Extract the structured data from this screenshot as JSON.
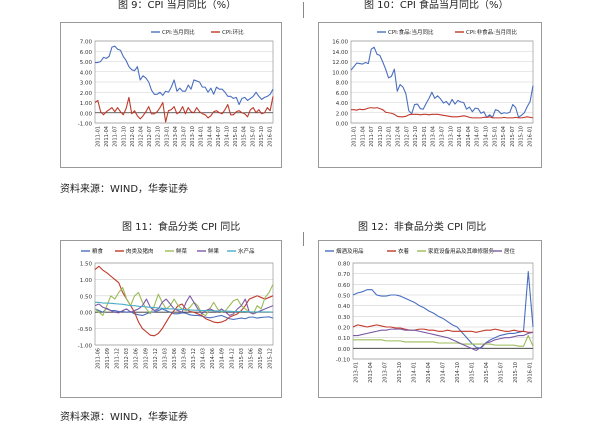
{
  "headings": {
    "fig9": "图 9：CPI 当月同比（%）",
    "fig10": "图 10：CPI 食品当月同比（%）",
    "fig11": "图 11：食品分类 CPI 同比",
    "fig12": "图 12：非食品分类 CPI 同比"
  },
  "sources": {
    "middle": "资料来源：WIND，华泰证券",
    "bottom": "资料来源：WIND，华泰证券"
  },
  "colors": {
    "blue": "#4a6fbf",
    "red": "#c0392b",
    "green": "#9bbb59",
    "purple": "#7b5aa6",
    "teal": "#4bacc6",
    "grid": "#d0d0d0",
    "axis": "#333333"
  },
  "chart_data": [
    {
      "id": "fig9",
      "type": "line",
      "x_labels": [
        "2011-01",
        "2011-04",
        "2011-07",
        "2011-10",
        "2012-01",
        "2012-04",
        "2012-07",
        "2012-10",
        "2013-01",
        "2013-04",
        "2013-07",
        "2013-10",
        "2014-01",
        "2014-04",
        "2014-07",
        "2014-10",
        "2015-01",
        "2015-04",
        "2015-07",
        "2015-10",
        "2016-01"
      ],
      "ylim": [
        -1.0,
        7.0
      ],
      "yticks": [
        "7.00",
        "6.00",
        "5.00",
        "4.00",
        "3.00",
        "2.00",
        "1.00",
        "0.00",
        "-1.00"
      ],
      "legend": [
        "CPI:当月同比",
        "CPI:环比"
      ],
      "series": [
        {
          "name": "CPI:当月同比",
          "color": "blue",
          "values": [
            4.9,
            4.9,
            5.0,
            5.4,
            5.3,
            5.5,
            6.4,
            6.5,
            6.2,
            6.1,
            5.5,
            5.1,
            4.5,
            4.2,
            4.1,
            4.5,
            3.2,
            3.6,
            3.4,
            3.0,
            2.2,
            1.8,
            1.8,
            2.0,
            1.7,
            2.1,
            2.0,
            2.5,
            3.2,
            2.1,
            2.4,
            2.1,
            2.1,
            2.7,
            2.3,
            3.2,
            3.1,
            3.0,
            2.5,
            2.5,
            2.0,
            2.4,
            1.8,
            2.5,
            2.3,
            2.3,
            2.0,
            1.6,
            1.6,
            1.4,
            1.5,
            0.8,
            1.4,
            1.5,
            1.2,
            1.4,
            1.6,
            2.0,
            1.6,
            1.3,
            1.5,
            1.6,
            1.8,
            2.3
          ]
        },
        {
          "name": "CPI:环比",
          "color": "red",
          "values": [
            1.0,
            1.2,
            0.1,
            -0.2,
            0.1,
            0.3,
            0.5,
            0.1,
            0.5,
            0.1,
            -0.2,
            0.4,
            1.5,
            -0.1,
            0.2,
            -0.3,
            -0.6,
            -0.3,
            0.1,
            0.6,
            -0.1,
            -0.1,
            0.1,
            0.5,
            1.0,
            -0.9,
            0.2,
            0.3,
            0.6,
            -0.1,
            0.1,
            0.6,
            -0.1,
            0.5,
            0.1,
            0.0,
            0.5,
            0.1,
            -0.1,
            -0.2,
            -0.5,
            -0.3,
            0.1,
            0.2,
            0.0,
            -0.1,
            0.3,
            0.8,
            -0.2,
            -0.2,
            0.1,
            0.2,
            0.0,
            -0.1,
            -0.4,
            0.3,
            0.5,
            0.0,
            0.3,
            -0.1,
            0.0,
            0.5,
            0.2,
            1.6
          ]
        }
      ]
    },
    {
      "id": "fig10",
      "type": "line",
      "x_labels": [
        "2011-01",
        "2011-04",
        "2011-07",
        "2011-10",
        "2012-01",
        "2012-04",
        "2012-07",
        "2012-10",
        "2013-01",
        "2013-04",
        "2013-07",
        "2013-10",
        "2014-01",
        "2014-04",
        "2014-07",
        "2014-10",
        "2015-01",
        "2015-04",
        "2015-07",
        "2015-10",
        "2016-01"
      ],
      "ylim": [
        0.0,
        16.0
      ],
      "yticks": [
        "16.00",
        "14.00",
        "12.00",
        "10.00",
        "8.00",
        "6.00",
        "4.00",
        "2.00",
        "0.00"
      ],
      "legend": [
        "CPI:食品:当月同比",
        "CPI:非食品:当月同比"
      ],
      "series": [
        {
          "name": "CPI:食品:当月同比",
          "color": "blue",
          "values": [
            10.3,
            11.0,
            11.7,
            11.6,
            11.5,
            11.8,
            11.6,
            14.4,
            14.8,
            13.4,
            13.2,
            11.9,
            10.5,
            8.8,
            9.1,
            10.5,
            6.2,
            7.5,
            7.0,
            5.7,
            2.4,
            1.8,
            3.6,
            3.7,
            2.8,
            2.7,
            3.8,
            4.8,
            6.0,
            4.8,
            5.3,
            4.7,
            3.9,
            4.2,
            3.5,
            4.6,
            3.7,
            4.4,
            4.1,
            4.0,
            2.7,
            3.1,
            2.2,
            2.9,
            2.8,
            1.9,
            2.2,
            1.1,
            1.6,
            1.1,
            2.6,
            2.4,
            1.8,
            2.0,
            1.9,
            2.1,
            3.6,
            3.0,
            1.1,
            1.5,
            2.0,
            3.2,
            4.2,
            7.3
          ]
        },
        {
          "name": "CPI:非食品:当月同比",
          "color": "red",
          "values": [
            2.6,
            2.6,
            2.5,
            2.7,
            2.6,
            2.7,
            2.9,
            3.0,
            2.9,
            3.0,
            2.8,
            2.6,
            2.1,
            2.0,
            1.9,
            1.7,
            1.3,
            1.2,
            1.2,
            1.3,
            1.6,
            1.7,
            1.7,
            1.7,
            1.6,
            1.7,
            1.7,
            1.6,
            1.7,
            1.7,
            1.7,
            1.6,
            1.5,
            1.4,
            1.3,
            1.2,
            1.2,
            1.2,
            1.3,
            1.4,
            1.3,
            1.1,
            1.0,
            1.0,
            1.0,
            1.0,
            1.1,
            1.1,
            1.2,
            1.0,
            1.0,
            1.0,
            1.0,
            1.1,
            1.0,
            1.0,
            1.0,
            1.1,
            1.0,
            1.0,
            1.1,
            1.2,
            1.1,
            1.0
          ]
        }
      ]
    },
    {
      "id": "fig11",
      "type": "line",
      "x_labels": [
        "2011-06",
        "2011-09",
        "2011-12",
        "2012-03",
        "2012-06",
        "2012-09",
        "2012-12",
        "2013-03",
        "2013-06",
        "2013-09",
        "2013-12",
        "2014-03",
        "2014-06",
        "2014-09",
        "2014-12",
        "2015-03",
        "2015-06",
        "2015-09",
        "2015-12"
      ],
      "ylim": [
        -1.0,
        1.5
      ],
      "yticks": [
        "1.50",
        "1.00",
        "0.50",
        "0.00",
        "-0.50",
        "-1.00"
      ],
      "legend": [
        "粮食",
        "肉类及猪肉",
        "鲜菜",
        "鲜果",
        "水产品"
      ],
      "series": [
        {
          "name": "粮食",
          "color": "blue",
          "values": [
            0.1,
            0.05,
            0.0,
            0.12,
            0.05,
            0.05,
            0.02,
            0.02,
            0.0,
            0.02,
            -0.05,
            -0.08,
            -0.1,
            -0.05,
            0.0,
            0.01,
            0.05,
            0.1,
            0.05,
            0.0,
            -0.05,
            -0.05,
            -0.02,
            -0.03,
            -0.08,
            -0.1,
            -0.1,
            -0.12,
            -0.15,
            -0.17,
            -0.15,
            -0.12,
            -0.1,
            -0.15,
            -0.2,
            -0.22,
            -0.2,
            -0.18,
            -0.2,
            -0.15,
            -0.15,
            -0.18,
            -0.16,
            -0.15,
            -0.14,
            -0.18
          ]
        },
        {
          "name": "肉类及猪肉",
          "color": "red",
          "values": [
            1.3,
            1.4,
            1.28,
            1.2,
            1.1,
            1.0,
            0.9,
            0.6,
            0.4,
            0.2,
            0.0,
            -0.3,
            -0.5,
            -0.6,
            -0.7,
            -0.72,
            -0.65,
            -0.5,
            -0.3,
            -0.1,
            0.05,
            0.2,
            0.25,
            0.1,
            0.02,
            0.0,
            -0.05,
            -0.1,
            -0.2,
            -0.25,
            -0.3,
            -0.32,
            -0.3,
            -0.25,
            -0.15,
            -0.1,
            -0.05,
            0.05,
            0.2,
            0.4,
            0.45,
            0.5,
            0.45,
            0.4,
            0.45,
            0.5
          ]
        },
        {
          "name": "鲜菜",
          "color": "green",
          "values": [
            0.1,
            0.0,
            -0.1,
            0.2,
            0.5,
            0.4,
            0.6,
            0.75,
            0.4,
            0.2,
            0.5,
            0.6,
            0.3,
            0.1,
            -0.05,
            0.2,
            0.55,
            0.3,
            0.1,
            0.2,
            0.4,
            0.2,
            0.1,
            0.05,
            0.15,
            0.3,
            0.2,
            -0.05,
            -0.1,
            0.1,
            0.3,
            0.1,
            0.0,
            0.05,
            0.2,
            0.35,
            0.4,
            0.2,
            0.1,
            0.0,
            -0.05,
            0.2,
            0.1,
            0.45,
            0.6,
            0.85
          ]
        },
        {
          "name": "鲜果",
          "color": "purple",
          "values": [
            0.2,
            0.25,
            0.15,
            0.1,
            0.05,
            0.0,
            -0.02,
            0.05,
            0.1,
            0.0,
            0.05,
            0.1,
            0.2,
            0.4,
            0.15,
            0.05,
            0.1,
            0.3,
            0.4,
            0.25,
            0.1,
            0.05,
            0.0,
            0.3,
            0.5,
            0.3,
            0.1,
            -0.05,
            0.05,
            0.1,
            0.05,
            0.0,
            0.1,
            0.0,
            -0.1,
            -0.05,
            0.1,
            0.2,
            0.4,
            0.0,
            -0.05,
            0.0,
            0.05,
            0.1,
            0.15,
            0.2
          ]
        },
        {
          "name": "水产品",
          "color": "teal",
          "values": [
            0.3,
            0.3,
            0.28,
            0.28,
            0.27,
            0.26,
            0.25,
            0.24,
            0.22,
            0.2,
            0.2,
            0.18,
            0.17,
            0.16,
            0.15,
            0.14,
            0.13,
            0.12,
            0.11,
            0.1,
            0.1,
            0.09,
            0.08,
            0.08,
            0.07,
            0.06,
            0.06,
            0.05,
            0.05,
            0.05,
            0.04,
            0.04,
            0.03,
            0.03,
            0.03,
            0.02,
            0.02,
            0.02,
            0.02,
            0.01,
            0.01,
            0.01,
            0.01,
            0.01,
            0.01,
            0.0
          ]
        }
      ]
    },
    {
      "id": "fig12",
      "type": "line",
      "x_labels": [
        "2013-01",
        "2013-04",
        "2013-07",
        "2013-10",
        "2014-01",
        "2014-04",
        "2014-07",
        "2014-10",
        "2015-01",
        "2015-04",
        "2015-07",
        "2015-10",
        "2016-01"
      ],
      "ylim": [
        -0.1,
        0.8
      ],
      "yticks": [
        "0.80",
        "0.70",
        "0.60",
        "0.50",
        "0.40",
        "0.30",
        "0.20",
        "0.10",
        "0.00",
        "-0.10"
      ],
      "legend": [
        "烟酒及用品",
        "衣着",
        "家庭设备用品及其维修服务",
        "居住"
      ],
      "series": [
        {
          "name": "烟酒及用品",
          "color": "blue",
          "values": [
            0.5,
            0.52,
            0.53,
            0.55,
            0.55,
            0.5,
            0.49,
            0.49,
            0.5,
            0.5,
            0.49,
            0.47,
            0.45,
            0.43,
            0.4,
            0.38,
            0.35,
            0.33,
            0.3,
            0.28,
            0.25,
            0.22,
            0.2,
            0.15,
            0.1,
            0.05,
            0.01,
            0.0,
            0.05,
            0.08,
            0.1,
            0.12,
            0.13,
            0.14,
            0.14,
            0.15,
            0.16,
            0.72,
            0.2
          ]
        },
        {
          "name": "衣着",
          "color": "red",
          "values": [
            0.2,
            0.22,
            0.21,
            0.2,
            0.21,
            0.22,
            0.21,
            0.2,
            0.2,
            0.19,
            0.19,
            0.18,
            0.17,
            0.17,
            0.18,
            0.18,
            0.17,
            0.17,
            0.16,
            0.16,
            0.17,
            0.16,
            0.16,
            0.16,
            0.16,
            0.16,
            0.15,
            0.16,
            0.17,
            0.17,
            0.18,
            0.17,
            0.16,
            0.16,
            0.17,
            0.16,
            0.16,
            0.15,
            0.15
          ]
        },
        {
          "name": "家庭设备用品及其维修服务",
          "color": "green",
          "values": [
            0.08,
            0.08,
            0.08,
            0.08,
            0.08,
            0.08,
            0.08,
            0.07,
            0.07,
            0.07,
            0.07,
            0.06,
            0.06,
            0.06,
            0.06,
            0.06,
            0.06,
            0.06,
            0.05,
            0.05,
            0.05,
            0.05,
            0.05,
            0.04,
            0.04,
            0.04,
            0.04,
            0.04,
            0.04,
            0.04,
            0.03,
            0.03,
            0.03,
            0.03,
            0.03,
            0.02,
            0.02,
            0.12,
            0.02
          ]
        },
        {
          "name": "居住",
          "color": "purple",
          "values": [
            0.12,
            0.12,
            0.13,
            0.14,
            0.15,
            0.16,
            0.17,
            0.17,
            0.18,
            0.18,
            0.18,
            0.17,
            0.17,
            0.17,
            0.16,
            0.15,
            0.14,
            0.13,
            0.12,
            0.11,
            0.1,
            0.08,
            0.06,
            0.04,
            0.02,
            0.0,
            -0.02,
            0.01,
            0.05,
            0.06,
            0.08,
            0.09,
            0.1,
            0.1,
            0.11,
            0.12,
            0.12,
            0.14,
            0.15
          ]
        }
      ]
    }
  ]
}
